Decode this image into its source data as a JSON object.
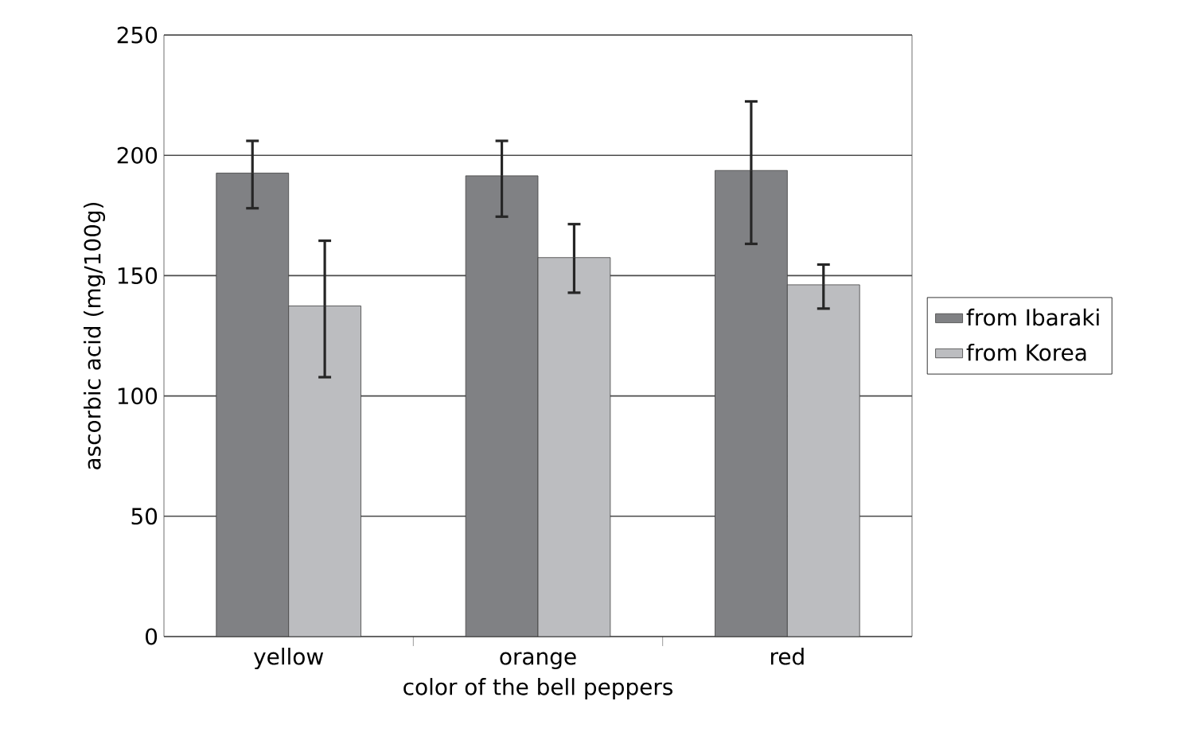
{
  "chart_data": {
    "type": "bar",
    "xlabel": "color of the bell peppers",
    "ylabel": "ascorbic acid (mg/100g)",
    "categories": [
      "yellow",
      "orange",
      "red"
    ],
    "series": [
      {
        "name": "from Ibaraki",
        "color": "#808184",
        "values": [
          192.6,
          191.5,
          193.7
        ],
        "errors": [
          [
            178,
            206
          ],
          [
            174.5,
            206
          ],
          [
            163.2,
            222.4
          ]
        ]
      },
      {
        "name": "from Korea",
        "color": "#bcbdc0",
        "values": [
          137.4,
          157.5,
          146.2
        ],
        "errors": [
          [
            107.8,
            164.5
          ],
          [
            142.9,
            171.4
          ],
          [
            136.3,
            154.6
          ]
        ]
      }
    ],
    "ylim": [
      0,
      250
    ],
    "yticks": [
      0,
      50,
      100,
      150,
      200,
      250
    ],
    "grid": "y",
    "legend": "right"
  }
}
